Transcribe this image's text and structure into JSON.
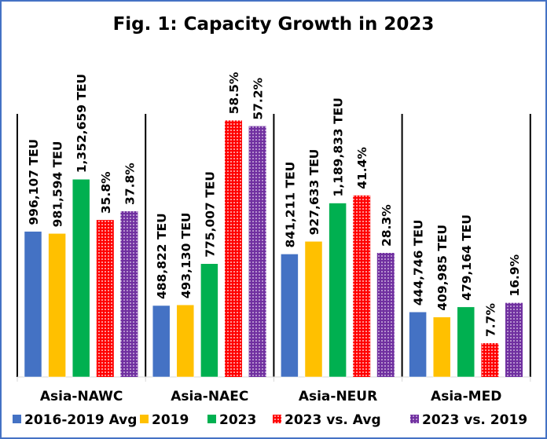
{
  "chart_data": {
    "type": "bar",
    "title": "Fig. 1: Capacity Growth in 2023",
    "categories": [
      "Asia-NAWC",
      "Asia-NAEC",
      "Asia-NEUR",
      "Asia-MED"
    ],
    "series": [
      {
        "name": "2016-2019 Avg",
        "axis": "primary",
        "unit": "TEU",
        "color": "#4472c4",
        "values": [
          996107,
          488822,
          841211,
          444746
        ],
        "labels": [
          "996,107 TEU",
          "488,822 TEU",
          "841,211 TEU",
          "444,746 TEU"
        ]
      },
      {
        "name": "2019",
        "axis": "primary",
        "unit": "TEU",
        "color": "#ffc000",
        "values": [
          981594,
          493130,
          927633,
          409985
        ],
        "labels": [
          "981,594 TEU",
          "493,130 TEU",
          "927,633 TEU",
          "409,985 TEU"
        ]
      },
      {
        "name": "2023",
        "axis": "primary",
        "unit": "TEU",
        "color": "#00b050",
        "values": [
          1352659,
          775007,
          1189833,
          479164
        ],
        "labels": [
          "1,352,659 TEU",
          "775,007 TEU",
          "1,189,833 TEU",
          "479,164 TEU"
        ]
      },
      {
        "name": "2023 vs. Avg",
        "axis": "secondary",
        "unit": "%",
        "color": "#ff0000",
        "pattern": "dotted",
        "values": [
          35.8,
          58.5,
          41.4,
          7.7
        ],
        "labels": [
          "35.8%",
          "58.5%",
          "41.4%",
          "7.7%"
        ]
      },
      {
        "name": "2023 vs. 2019",
        "axis": "secondary",
        "unit": "%",
        "color": "#7030a0",
        "pattern": "dotted",
        "values": [
          37.8,
          57.2,
          28.3,
          16.9
        ],
        "labels": [
          "37.8%",
          "57.2%",
          "28.3%",
          "16.9%"
        ]
      }
    ],
    "ylim_primary": [
      0,
      1800000
    ],
    "ylim_secondary": [
      0,
      60
    ],
    "axis_labels_shown": false,
    "grid": false,
    "legend": "bottom",
    "frame_color": "#4472c4"
  }
}
